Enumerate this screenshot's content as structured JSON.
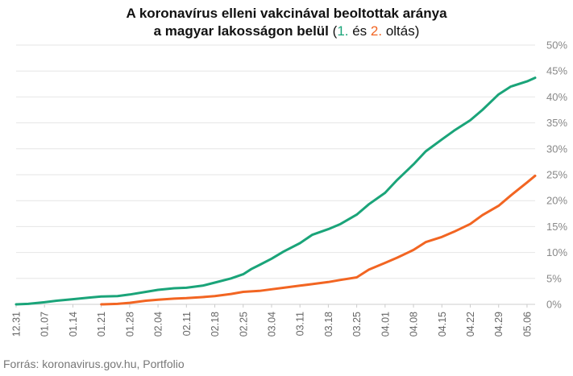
{
  "title": {
    "line1": "A koronavírus elleni vakcinával beoltottak aránya",
    "line2_main": "a magyar lakosságon belül",
    "paren_open": "(",
    "first": "1.",
    "and": " és ",
    "second": "2.",
    "suffix": " oltás)"
  },
  "source": "Forrás: koronavirus.gov.hu, Portfolio",
  "colors": {
    "first": "#1aa479",
    "second": "#f26522",
    "grid": "#e6e6e6",
    "axis": "#cccccc"
  },
  "chart_data": {
    "type": "line",
    "xlabel": "",
    "ylabel": "",
    "ylim": [
      0,
      50
    ],
    "y_unit": "%",
    "yticks": [
      "0%",
      "5%",
      "10%",
      "15%",
      "20%",
      "25%",
      "30%",
      "35%",
      "40%",
      "45%",
      "50%"
    ],
    "x_start": "2020-12-31",
    "x_tick_labels": [
      "12.31",
      "01.07",
      "01.14",
      "01.21",
      "01.28",
      "02.04",
      "02.11",
      "02.18",
      "02.25",
      "03.04",
      "03.11",
      "03.18",
      "03.25",
      "04.01",
      "04.08",
      "04.15",
      "04.22",
      "04.29",
      "05.06"
    ],
    "grid": true,
    "legend": "in-title",
    "series": [
      {
        "name": "1.",
        "color": "#1aa479",
        "points": [
          [
            "12.31",
            0.0
          ],
          [
            "01.03",
            0.1
          ],
          [
            "01.07",
            0.4
          ],
          [
            "01.10",
            0.7
          ],
          [
            "01.14",
            1.0
          ],
          [
            "01.18",
            1.3
          ],
          [
            "01.21",
            1.5
          ],
          [
            "01.25",
            1.6
          ],
          [
            "01.28",
            1.9
          ],
          [
            "02.01",
            2.4
          ],
          [
            "02.04",
            2.8
          ],
          [
            "02.08",
            3.1
          ],
          [
            "02.11",
            3.2
          ],
          [
            "02.15",
            3.6
          ],
          [
            "02.18",
            4.2
          ],
          [
            "02.22",
            5.0
          ],
          [
            "02.25",
            5.8
          ],
          [
            "02.27",
            6.8
          ],
          [
            "03.01",
            7.6
          ],
          [
            "03.04",
            8.8
          ],
          [
            "03.07",
            10.2
          ],
          [
            "03.11",
            11.8
          ],
          [
            "03.14",
            13.4
          ],
          [
            "03.18",
            14.5
          ],
          [
            "03.21",
            15.5
          ],
          [
            "03.25",
            17.3
          ],
          [
            "03.28",
            19.3
          ],
          [
            "04.01",
            21.5
          ],
          [
            "04.04",
            24.0
          ],
          [
            "04.08",
            27.0
          ],
          [
            "04.11",
            29.5
          ],
          [
            "04.15",
            31.8
          ],
          [
            "04.18",
            33.5
          ],
          [
            "04.22",
            35.5
          ],
          [
            "04.25",
            37.5
          ],
          [
            "04.29",
            40.5
          ],
          [
            "05.02",
            42.0
          ],
          [
            "05.06",
            43.0
          ],
          [
            "05.08",
            43.7
          ]
        ]
      },
      {
        "name": "2.",
        "color": "#f26522",
        "points": [
          [
            "01.21",
            0.0
          ],
          [
            "01.25",
            0.1
          ],
          [
            "01.28",
            0.3
          ],
          [
            "02.01",
            0.7
          ],
          [
            "02.04",
            0.9
          ],
          [
            "02.08",
            1.1
          ],
          [
            "02.11",
            1.2
          ],
          [
            "02.15",
            1.4
          ],
          [
            "02.18",
            1.6
          ],
          [
            "02.22",
            2.0
          ],
          [
            "02.25",
            2.4
          ],
          [
            "03.01",
            2.6
          ],
          [
            "03.04",
            2.9
          ],
          [
            "03.07",
            3.2
          ],
          [
            "03.11",
            3.6
          ],
          [
            "03.14",
            3.9
          ],
          [
            "03.18",
            4.3
          ],
          [
            "03.21",
            4.7
          ],
          [
            "03.25",
            5.2
          ],
          [
            "03.28",
            6.7
          ],
          [
            "04.01",
            8.0
          ],
          [
            "04.04",
            9.0
          ],
          [
            "04.08",
            10.5
          ],
          [
            "04.11",
            12.0
          ],
          [
            "04.15",
            13.0
          ],
          [
            "04.18",
            14.0
          ],
          [
            "04.22",
            15.5
          ],
          [
            "04.25",
            17.2
          ],
          [
            "04.29",
            19.0
          ],
          [
            "05.02",
            21.0
          ],
          [
            "05.06",
            23.5
          ],
          [
            "05.08",
            24.8
          ]
        ]
      }
    ]
  }
}
